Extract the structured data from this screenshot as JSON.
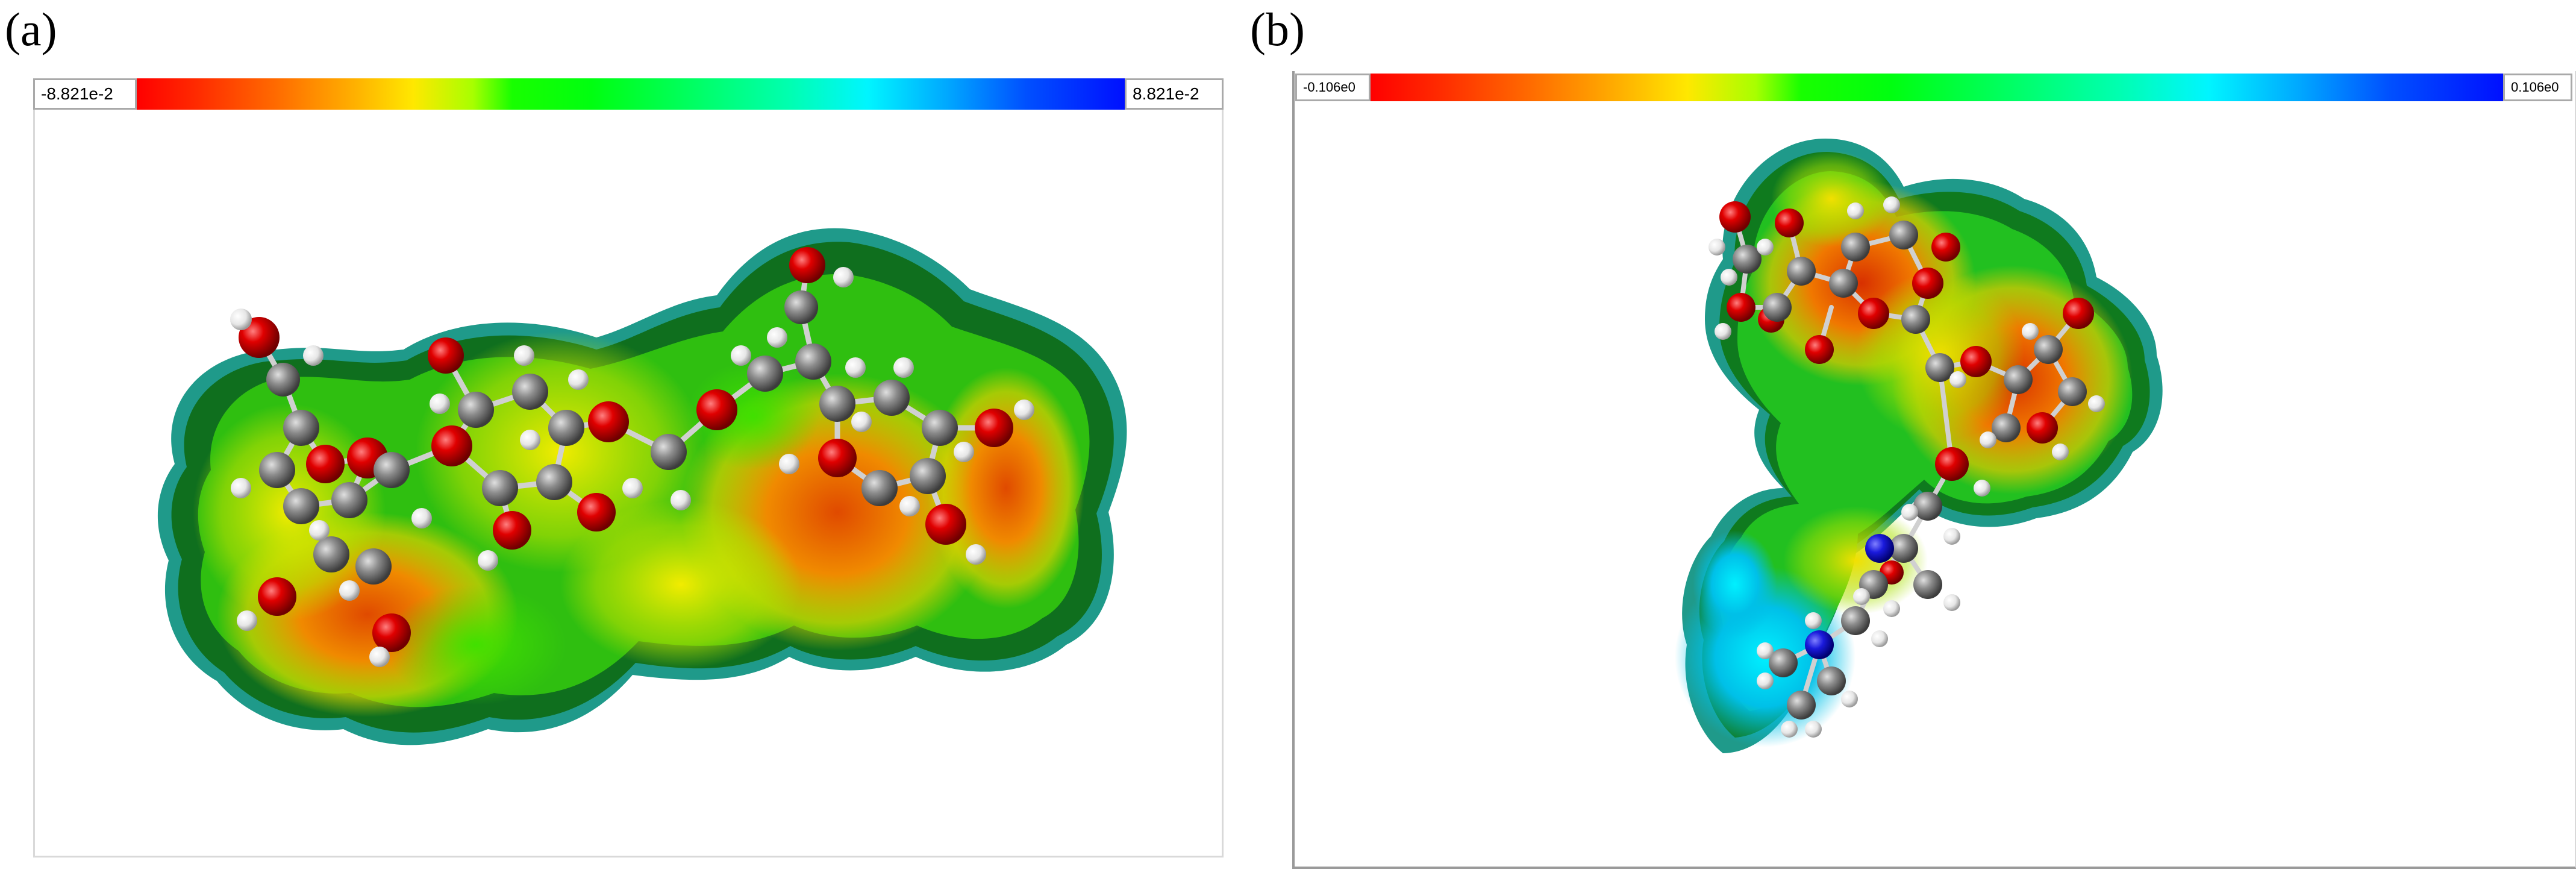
{
  "panels": [
    {
      "label": "(a)",
      "colorbar": {
        "min_label": "-8.821e-2",
        "max_label": "8.821e-2",
        "colors": [
          "#ff0000",
          "#ffe800",
          "#00ff10",
          "#00f5ff",
          "#0010ff"
        ]
      },
      "atom_colors": {
        "carbon": "#8c8c8c",
        "oxygen": "#e00000",
        "hydrogen": "#f0f0f0"
      }
    },
    {
      "label": "(b)",
      "colorbar": {
        "min_label": "-0.106e0",
        "max_label": "0.106e0",
        "colors": [
          "#ff0000",
          "#ffe800",
          "#00ff10",
          "#00f5ff",
          "#0010ff"
        ]
      },
      "atom_colors": {
        "carbon": "#8c8c8c",
        "oxygen": "#e00000",
        "hydrogen": "#f0f0f0",
        "nitrogen": "#1a1adc"
      }
    }
  ]
}
